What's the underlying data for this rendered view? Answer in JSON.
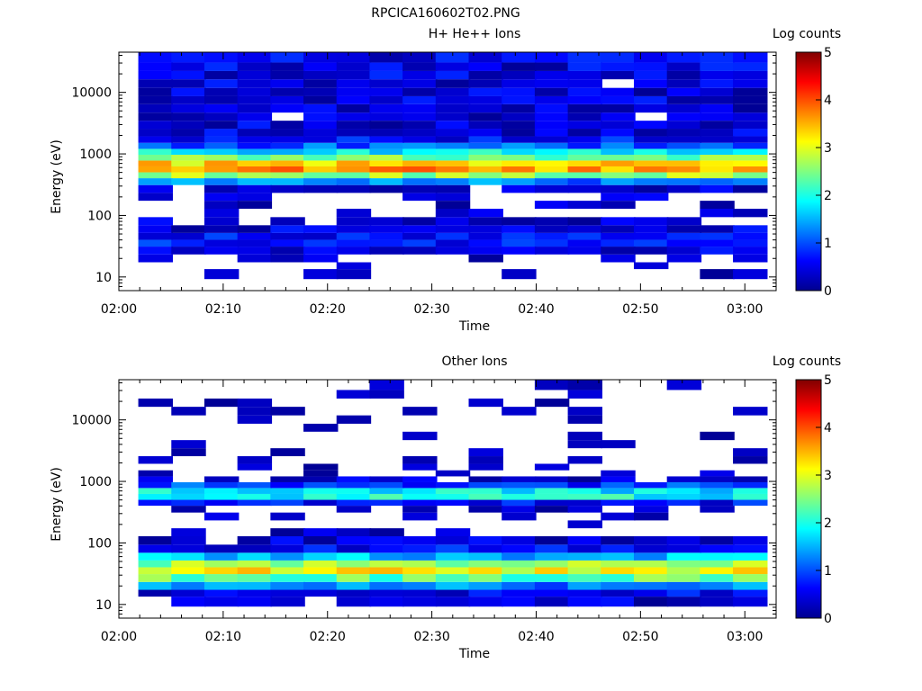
{
  "title": "RPCICA160602T02.PNG",
  "colormap": [
    "#00008f",
    "#0000ff",
    "#0080ff",
    "#00ffff",
    "#80ff80",
    "#ffff00",
    "#ff8000",
    "#ff0000",
    "#800000"
  ],
  "chart_data": [
    {
      "type": "heatmap",
      "title": "H+ He++ Ions",
      "xlabel": "Time",
      "ylabel": "Energy (eV)",
      "colorbar_label": "Log counts",
      "colorbar_range": [
        0,
        5
      ],
      "colorbar_ticks": [
        "0",
        "1",
        "2",
        "3",
        "4",
        "5"
      ],
      "y_scale": "log",
      "ylim": [
        6,
        45000
      ],
      "y_ticks": [
        10,
        100,
        1000,
        10000
      ],
      "y_tick_labels": [
        "10",
        "100",
        "1000",
        "10000"
      ],
      "x_ticks": [
        "02:00",
        "02:10",
        "02:20",
        "02:30",
        "02:40",
        "02:50",
        "03:00"
      ],
      "time_bins": [
        "02:01:00",
        "02:04:10",
        "02:07:20",
        "02:10:30",
        "02:13:40",
        "02:16:50",
        "02:20:00",
        "02:23:10",
        "02:26:20",
        "02:29:30",
        "02:32:40",
        "02:35:50",
        "02:39:00",
        "02:42:10",
        "02:45:20",
        "02:48:30",
        "02:51:40",
        "02:54:50",
        "02:58:00"
      ],
      "energy_profile": [
        {
          "energy_eV": 12,
          "log_counts": 0.05
        },
        {
          "energy_eV": 15,
          "log_counts": 0.1
        },
        {
          "energy_eV": 20,
          "log_counts": 0.2
        },
        {
          "energy_eV": 27,
          "log_counts": 0.4
        },
        {
          "energy_eV": 36,
          "log_counts": 0.7
        },
        {
          "energy_eV": 45,
          "log_counts": 0.7
        },
        {
          "energy_eV": 60,
          "log_counts": 0.45
        },
        {
          "energy_eV": 80,
          "log_counts": 0.3
        },
        {
          "energy_eV": 110,
          "log_counts": 0.2
        },
        {
          "energy_eV": 150,
          "log_counts": 0.2
        },
        {
          "energy_eV": 200,
          "log_counts": 0.25
        },
        {
          "energy_eV": 270,
          "log_counts": 0.3
        },
        {
          "energy_eV": 360,
          "log_counts": 1.2
        },
        {
          "energy_eV": 450,
          "log_counts": 2.6
        },
        {
          "energy_eV": 560,
          "log_counts": 3.6
        },
        {
          "energy_eV": 700,
          "log_counts": 3.3
        },
        {
          "energy_eV": 870,
          "log_counts": 2.4
        },
        {
          "energy_eV": 1080,
          "log_counts": 1.8
        },
        {
          "energy_eV": 1350,
          "log_counts": 1.0
        },
        {
          "energy_eV": 1700,
          "log_counts": 0.6
        },
        {
          "energy_eV": 2200,
          "log_counts": 0.45
        },
        {
          "energy_eV": 3000,
          "log_counts": 0.4
        },
        {
          "energy_eV": 4000,
          "log_counts": 0.35
        },
        {
          "energy_eV": 5500,
          "log_counts": 0.35
        },
        {
          "energy_eV": 7500,
          "log_counts": 0.4
        },
        {
          "energy_eV": 10000,
          "log_counts": 0.4
        },
        {
          "energy_eV": 14000,
          "log_counts": 0.4
        },
        {
          "energy_eV": 19000,
          "log_counts": 0.45
        },
        {
          "energy_eV": 26000,
          "log_counts": 0.45
        },
        {
          "energy_eV": 36000,
          "log_counts": 0.5
        }
      ]
    },
    {
      "type": "heatmap",
      "title": "Other Ions",
      "xlabel": "Time",
      "ylabel": "Energy (eV)",
      "colorbar_label": "Log counts",
      "colorbar_range": [
        0,
        5
      ],
      "colorbar_ticks": [
        "0",
        "1",
        "2",
        "3",
        "4",
        "5"
      ],
      "y_scale": "log",
      "ylim": [
        6,
        45000
      ],
      "y_ticks": [
        10,
        100,
        1000,
        10000
      ],
      "y_tick_labels": [
        "10",
        "100",
        "1000",
        "10000"
      ],
      "x_ticks": [
        "02:00",
        "02:10",
        "02:20",
        "02:30",
        "02:40",
        "02:50",
        "03:00"
      ],
      "time_bins": [
        "02:01:00",
        "02:04:10",
        "02:07:20",
        "02:10:30",
        "02:13:40",
        "02:16:50",
        "02:20:00",
        "02:23:10",
        "02:26:20",
        "02:29:30",
        "02:32:40",
        "02:35:50",
        "02:39:00",
        "02:42:10",
        "02:45:20",
        "02:48:30",
        "02:51:40",
        "02:54:50",
        "02:58:00"
      ],
      "energy_profile": [
        {
          "energy_eV": 12,
          "log_counts": 0.3
        },
        {
          "energy_eV": 15,
          "log_counts": 0.5
        },
        {
          "energy_eV": 20,
          "log_counts": 1.2
        },
        {
          "energy_eV": 27,
          "log_counts": 2.3
        },
        {
          "energy_eV": 36,
          "log_counts": 3.1
        },
        {
          "energy_eV": 45,
          "log_counts": 2.6
        },
        {
          "energy_eV": 60,
          "log_counts": 1.5
        },
        {
          "energy_eV": 80,
          "log_counts": 0.6
        },
        {
          "energy_eV": 110,
          "log_counts": 0.3
        },
        {
          "energy_eV": 150,
          "log_counts": 0.2
        },
        {
          "energy_eV": 200,
          "log_counts": 0.15
        },
        {
          "energy_eV": 270,
          "log_counts": 0.15
        },
        {
          "energy_eV": 360,
          "log_counts": 0.2
        },
        {
          "energy_eV": 450,
          "log_counts": 0.6
        },
        {
          "energy_eV": 560,
          "log_counts": 1.9
        },
        {
          "energy_eV": 700,
          "log_counts": 1.8
        },
        {
          "energy_eV": 870,
          "log_counts": 0.9
        },
        {
          "energy_eV": 1080,
          "log_counts": 0.3
        },
        {
          "energy_eV": 1350,
          "log_counts": 0.15
        },
        {
          "energy_eV": 1700,
          "log_counts": 0.1
        },
        {
          "energy_eV": 2200,
          "log_counts": 0.05
        },
        {
          "energy_eV": 3000,
          "log_counts": 0.05
        },
        {
          "energy_eV": 4000,
          "log_counts": 0.05
        },
        {
          "energy_eV": 5500,
          "log_counts": 0.05
        },
        {
          "energy_eV": 7500,
          "log_counts": 0.05
        },
        {
          "energy_eV": 10000,
          "log_counts": 0.05
        },
        {
          "energy_eV": 14000,
          "log_counts": 0.05
        },
        {
          "energy_eV": 19000,
          "log_counts": 0.05
        },
        {
          "energy_eV": 26000,
          "log_counts": 0.05
        },
        {
          "energy_eV": 36000,
          "log_counts": 0.05
        }
      ]
    }
  ]
}
